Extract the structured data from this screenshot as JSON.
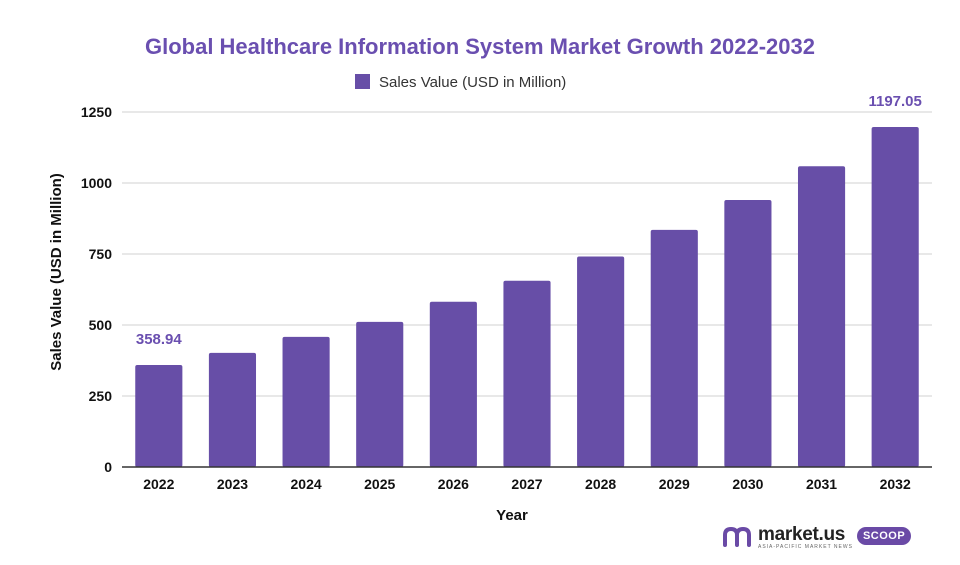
{
  "colors": {
    "accent": "#674ea7",
    "title": "#6a4fb0",
    "grid": "#d0d0d0",
    "axis": "#333333"
  },
  "brand": {
    "name": "market.us",
    "tagline": "ASIA-PACIFIC MARKET NEWS",
    "badge": "SCOOP",
    "icon": "market-us-logo-icon"
  },
  "chart_data": {
    "type": "bar",
    "title": "Global Healthcare Information System Market Growth 2022-2032",
    "xlabel": "Year",
    "ylabel": "Sales Value (USD in Million)",
    "ylim": [
      0,
      1250
    ],
    "yticks": [
      0,
      250,
      500,
      750,
      1000,
      1250
    ],
    "grid": true,
    "legend_position": "top-center",
    "categories": [
      "2022",
      "2023",
      "2024",
      "2025",
      "2026",
      "2027",
      "2028",
      "2029",
      "2030",
      "2031",
      "2032"
    ],
    "series": [
      {
        "name": "Sales Value (USD in Million)",
        "color": "#674ea7",
        "values": [
          358.94,
          402,
          458,
          511,
          582,
          656,
          741,
          835,
          940,
          1059,
          1197.05
        ]
      }
    ],
    "data_labels": [
      {
        "category": "2022",
        "text": "358.94"
      },
      {
        "category": "2032",
        "text": "1197.05"
      }
    ]
  }
}
